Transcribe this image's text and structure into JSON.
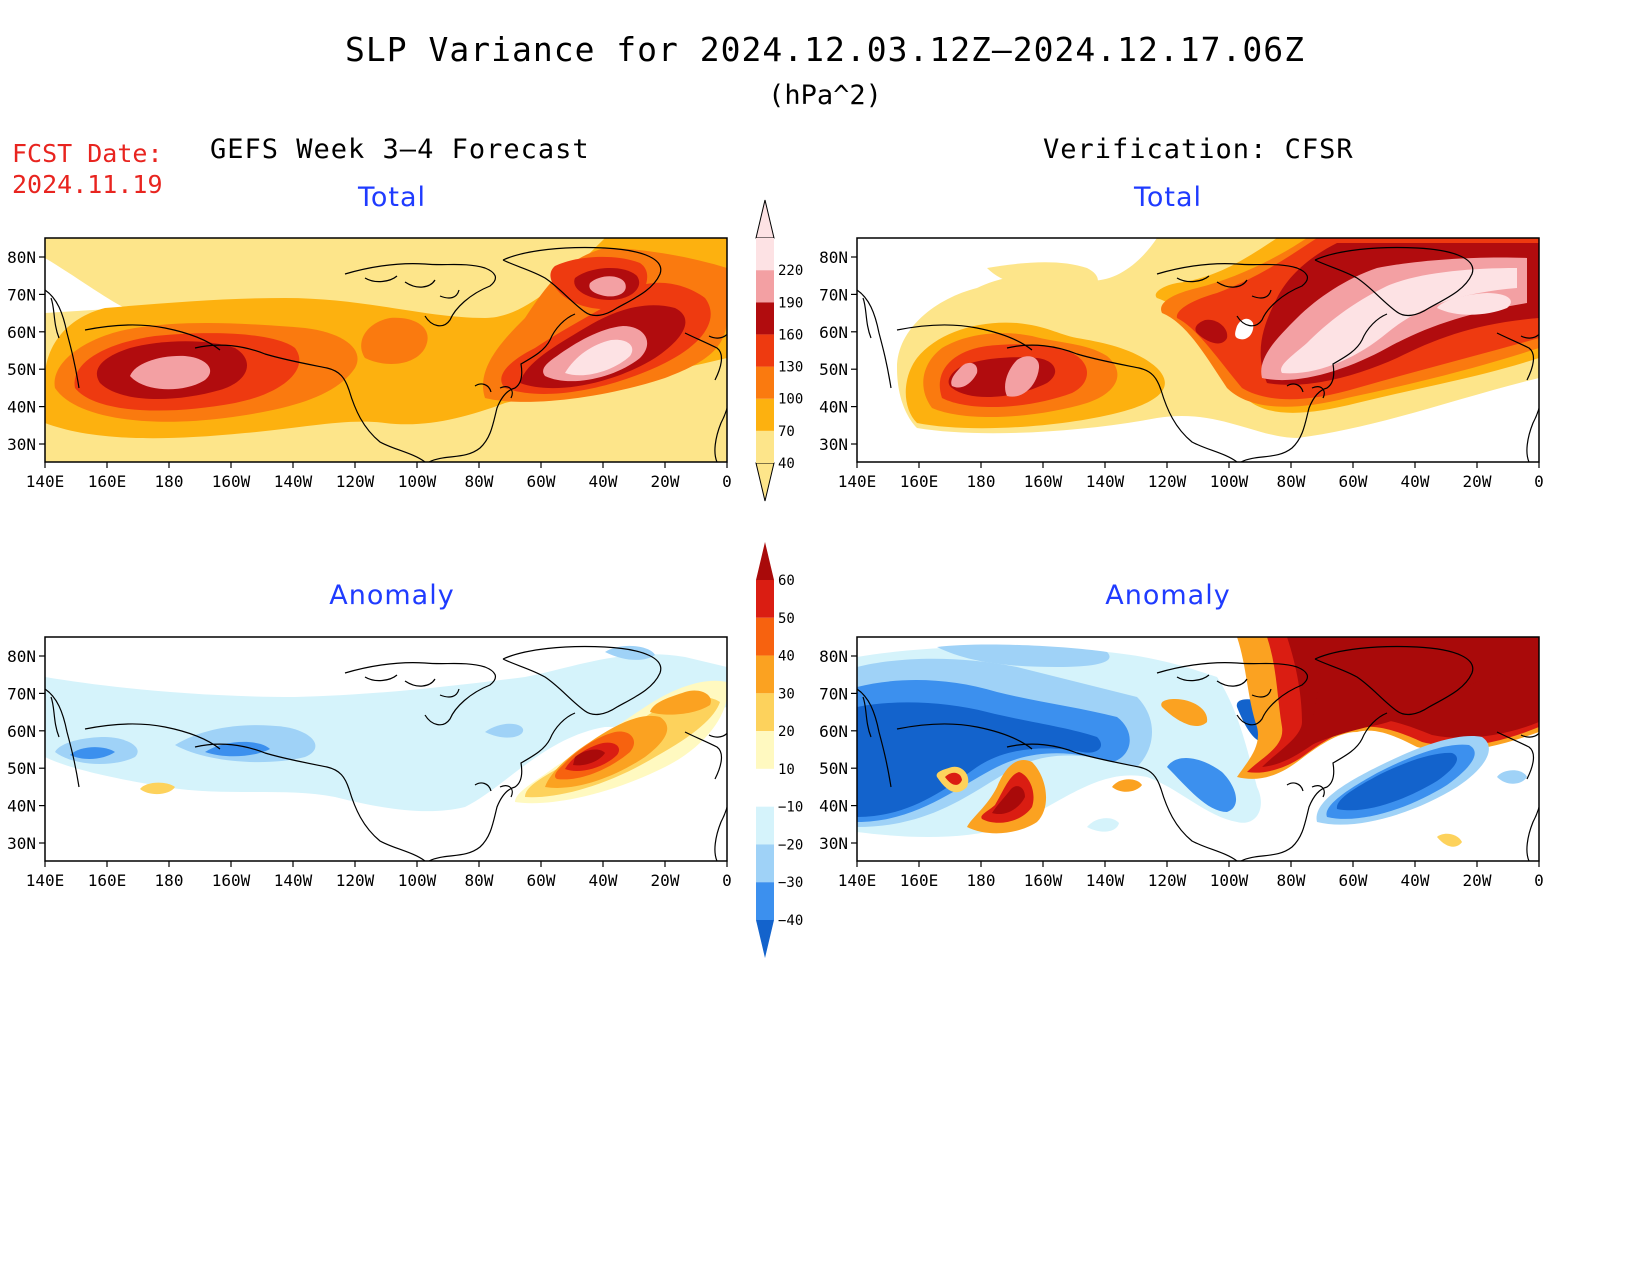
{
  "title": "SLP Variance for 2024.12.03.12Z–2024.12.17.06Z",
  "units": "(hPa^2)",
  "fcst_date_label": "FCST Date:",
  "fcst_date_value": "2024.11.19",
  "left_column_title": "GEFS Week 3–4 Forecast",
  "right_column_title": "Verification: CFSR",
  "lon_ticks": [
    "140E",
    "160E",
    "180",
    "160W",
    "140W",
    "120W",
    "100W",
    "80W",
    "60W",
    "40W",
    "20W",
    "0"
  ],
  "lat_ticks": [
    "80N",
    "70N",
    "60N",
    "50N",
    "40N",
    "30N"
  ],
  "panels": [
    {
      "id": "fcst-total",
      "label": "Total"
    },
    {
      "id": "cfsr-total",
      "label": "Total"
    },
    {
      "id": "fcst-anom",
      "label": "Anomaly"
    },
    {
      "id": "cfsr-anom",
      "label": "Anomaly"
    }
  ],
  "colorbars": {
    "total": {
      "levels": [
        "40",
        "70",
        "100",
        "130",
        "160",
        "190",
        "220"
      ],
      "colors": [
        "#fde58a",
        "#fdb10f",
        "#fa7a0f",
        "#ee3a10",
        "#b10c0e",
        "#f3a0a3",
        "#fde2e4"
      ]
    },
    "anomaly": {
      "levels": [
        "60",
        "50",
        "40",
        "30",
        "20",
        "10",
        "−10",
        "−20",
        "−30",
        "−40"
      ],
      "colors": [
        "#a90a0a",
        "#da1d12",
        "#f7620f",
        "#fba221",
        "#fdd25c",
        "#fff9c0",
        "#ffffff",
        "#d5f3fb",
        "#9fd2f7",
        "#3c90ee",
        "#1363cc"
      ]
    }
  }
}
